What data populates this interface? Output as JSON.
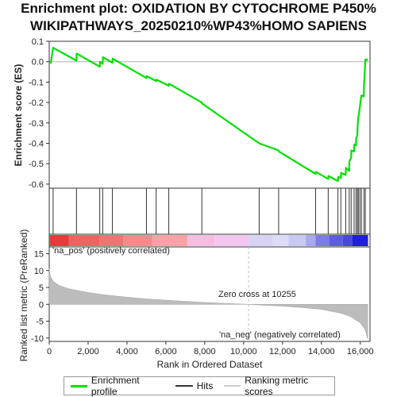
{
  "title_line1": "Enrichment plot: OXIDATION BY CYTOCHROME P450%",
  "title_line2": "WIKIPATHWAYS_20250210%WP43%HOMO SAPIENS",
  "colors": {
    "enrichment_line": "#00e000",
    "zero_line": "#b0b0b0",
    "hit_line": "#333333",
    "metric_fill": "#bcbcbc",
    "pos_text": "#e03030",
    "neg_text": "#3a3ad0"
  },
  "chart_data": [
    {
      "type": "line",
      "name": "enrichment-profile",
      "ylabel": "Enrichment score (ES)",
      "xlim": [
        0,
        16500
      ],
      "ylim": [
        -0.62,
        0.1
      ],
      "yticks": [
        "0.1",
        "0.0",
        "-0.1",
        "-0.2",
        "-0.3",
        "-0.4",
        "-0.5",
        "-0.6"
      ],
      "ytick_values": [
        0.1,
        0.0,
        -0.1,
        -0.2,
        -0.3,
        -0.4,
        -0.5,
        -0.6
      ],
      "points": [
        [
          0,
          0.0
        ],
        [
          80,
          -0.005
        ],
        [
          200,
          0.068
        ],
        [
          1400,
          0.005
        ],
        [
          1410,
          0.04
        ],
        [
          2600,
          -0.025
        ],
        [
          2610,
          0.0
        ],
        [
          2750,
          -0.01
        ],
        [
          2760,
          0.022
        ],
        [
          3250,
          -0.005
        ],
        [
          3260,
          0.015
        ],
        [
          5000,
          -0.08
        ],
        [
          5010,
          -0.07
        ],
        [
          5500,
          -0.095
        ],
        [
          5510,
          -0.088
        ],
        [
          6150,
          -0.118
        ],
        [
          6160,
          -0.108
        ],
        [
          7850,
          -0.2
        ],
        [
          7860,
          -0.205
        ],
        [
          10800,
          -0.4
        ],
        [
          11800,
          -0.435
        ],
        [
          11810,
          -0.44
        ],
        [
          13700,
          -0.55
        ],
        [
          13710,
          -0.54
        ],
        [
          14350,
          -0.575
        ],
        [
          14360,
          -0.56
        ],
        [
          14850,
          -0.585
        ],
        [
          14860,
          -0.565
        ],
        [
          15000,
          -0.57
        ],
        [
          15010,
          -0.545
        ],
        [
          15250,
          -0.555
        ],
        [
          15260,
          -0.52
        ],
        [
          15430,
          -0.535
        ],
        [
          15440,
          -0.49
        ],
        [
          15530,
          -0.47
        ],
        [
          15540,
          -0.435
        ],
        [
          15680,
          -0.44
        ],
        [
          15690,
          -0.405
        ],
        [
          15780,
          -0.41
        ],
        [
          15790,
          -0.375
        ],
        [
          15850,
          -0.36
        ],
        [
          15860,
          -0.32
        ],
        [
          15900,
          -0.27
        ],
        [
          15930,
          -0.26
        ],
        [
          15980,
          -0.22
        ],
        [
          16020,
          -0.19
        ],
        [
          16060,
          -0.165
        ],
        [
          16180,
          -0.17
        ],
        [
          16190,
          -0.12
        ],
        [
          16230,
          -0.05
        ],
        [
          16260,
          0.01
        ],
        [
          16300,
          0.012
        ],
        [
          16380,
          0.005
        ]
      ]
    },
    {
      "type": "bar",
      "name": "hits",
      "x": [
        200,
        1400,
        2600,
        2750,
        3250,
        5000,
        5500,
        6150,
        7850,
        10800,
        11800,
        13700,
        14350,
        14850,
        15000,
        15250,
        15430,
        15530,
        15680,
        15780,
        15850,
        15900,
        15980,
        16060,
        16190,
        16260
      ]
    },
    {
      "type": "area",
      "name": "ranked-list-metric",
      "xlabel": "Rank in Ordered Dataset",
      "ylabel": "Ranked list metric (PreRanked)",
      "xlim": [
        0,
        16500
      ],
      "ylim": [
        -11,
        17
      ],
      "xticks": [
        "0",
        "2,000",
        "4,000",
        "6,000",
        "8,000",
        "10,000",
        "12,000",
        "14,000",
        "16,000"
      ],
      "xtick_values": [
        0,
        2000,
        4000,
        6000,
        8000,
        10000,
        12000,
        14000,
        16000
      ],
      "yticks": [
        "15",
        "10",
        "5",
        "0",
        "-5",
        "-10"
      ],
      "ytick_values": [
        15,
        10,
        5,
        0,
        -5,
        -10
      ],
      "points": [
        [
          0,
          10.5
        ],
        [
          50,
          8.5
        ],
        [
          200,
          6.8
        ],
        [
          500,
          5.6
        ],
        [
          1000,
          4.6
        ],
        [
          2000,
          3.5
        ],
        [
          3000,
          2.7
        ],
        [
          4000,
          2.1
        ],
        [
          5000,
          1.6
        ],
        [
          6000,
          1.2
        ],
        [
          7000,
          0.85
        ],
        [
          8000,
          0.55
        ],
        [
          9000,
          0.3
        ],
        [
          10255,
          0.0
        ],
        [
          11000,
          -0.25
        ],
        [
          12000,
          -0.55
        ],
        [
          13000,
          -0.95
        ],
        [
          14000,
          -1.5
        ],
        [
          15000,
          -2.6
        ],
        [
          15500,
          -3.6
        ],
        [
          16000,
          -5.5
        ],
        [
          16250,
          -7.5
        ],
        [
          16380,
          -10.3
        ]
      ],
      "annotations": {
        "zero_cross": "Zero cross at 10255",
        "zero_cross_rank": 10255,
        "pos_label": "'na_pos' (positively correlated)",
        "neg_label": "'na_neg' (negatively correlated)"
      }
    }
  ],
  "legend": {
    "enrichment_label": "Enrichment profile",
    "hits_label": "Hits",
    "metric_label": "Ranking metric scores"
  }
}
